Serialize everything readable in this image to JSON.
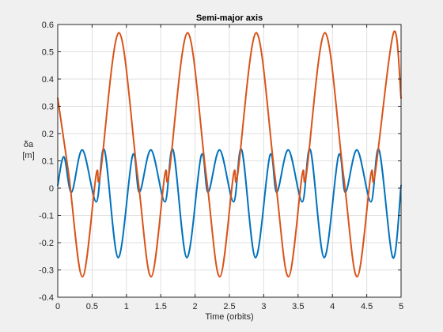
{
  "chart_data": {
    "type": "line",
    "title": "Semi-major axis",
    "xlabel": "Time (orbits)",
    "ylabel_symbol": "δa",
    "ylabel_unit": "[m]",
    "xlim": [
      0,
      5
    ],
    "ylim": [
      -0.4,
      0.6
    ],
    "x_ticks": [
      0,
      0.5,
      1,
      1.5,
      2,
      2.5,
      3,
      3.5,
      4,
      4.5,
      5
    ],
    "x_tick_labels": [
      "0",
      "0.5",
      "1",
      "1.5",
      "2",
      "2.5",
      "3",
      "3.5",
      "4",
      "4.5",
      "5"
    ],
    "y_ticks": [
      -0.4,
      -0.3,
      -0.2,
      -0.1,
      0,
      0.1,
      0.2,
      0.3,
      0.4,
      0.5,
      0.6
    ],
    "y_tick_labels": [
      "-0.4",
      "-0.3",
      "-0.2",
      "-0.1",
      "0",
      "0.1",
      "0.2",
      "0.3",
      "0.4",
      "0.5",
      "0.6"
    ],
    "grid": true,
    "series": [
      {
        "color": "#0072BD",
        "points": [
          [
            0,
            0.01
          ],
          [
            0.09,
            0.115
          ],
          [
            0.2,
            -0.015
          ],
          [
            0.36,
            0.14
          ],
          [
            0.56,
            -0.05
          ],
          [
            0.68,
            0.14
          ],
          [
            0.88,
            -0.255
          ],
          [
            1.09,
            0.12
          ],
          [
            1.19,
            -0.015
          ],
          [
            1.36,
            0.14
          ],
          [
            1.56,
            -0.05
          ],
          [
            1.68,
            0.14
          ],
          [
            1.88,
            -0.255
          ],
          [
            2.09,
            0.12
          ],
          [
            2.19,
            -0.015
          ],
          [
            2.36,
            0.14
          ],
          [
            2.56,
            -0.05
          ],
          [
            2.68,
            0.14
          ],
          [
            2.88,
            -0.255
          ],
          [
            3.09,
            0.12
          ],
          [
            3.19,
            -0.015
          ],
          [
            3.36,
            0.14
          ],
          [
            3.56,
            -0.05
          ],
          [
            3.68,
            0.14
          ],
          [
            3.88,
            -0.255
          ],
          [
            4.09,
            0.12
          ],
          [
            4.19,
            -0.015
          ],
          [
            4.36,
            0.14
          ],
          [
            4.56,
            -0.05
          ],
          [
            4.68,
            0.14
          ],
          [
            4.88,
            -0.255
          ],
          [
            5,
            0.01
          ]
        ]
      },
      {
        "color": "#D95319",
        "points": [
          [
            0,
            0.33
          ],
          [
            0.16,
            0.05
          ],
          [
            0.36,
            -0.325
          ],
          [
            0.56,
            0.05
          ],
          [
            0.62,
            0.05
          ],
          [
            0.89,
            0.57
          ],
          [
            1.16,
            0.05
          ],
          [
            1.36,
            -0.325
          ],
          [
            1.56,
            0.05
          ],
          [
            1.62,
            0.05
          ],
          [
            1.89,
            0.57
          ],
          [
            2.16,
            0.05
          ],
          [
            2.36,
            -0.325
          ],
          [
            2.56,
            0.05
          ],
          [
            2.62,
            0.05
          ],
          [
            2.89,
            0.57
          ],
          [
            3.16,
            0.05
          ],
          [
            3.36,
            -0.325
          ],
          [
            3.56,
            0.05
          ],
          [
            3.62,
            0.05
          ],
          [
            3.89,
            0.57
          ],
          [
            4.16,
            0.05
          ],
          [
            4.36,
            -0.325
          ],
          [
            4.56,
            0.05
          ],
          [
            4.62,
            0.05
          ],
          [
            4.89,
            0.57
          ],
          [
            5,
            0.33
          ]
        ]
      }
    ]
  }
}
